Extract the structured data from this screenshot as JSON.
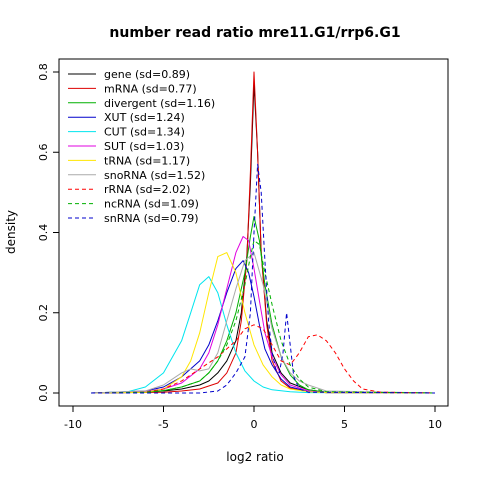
{
  "chart_data": {
    "type": "line",
    "title": "number read ratio mre11.G1/rrp6.G1",
    "xlabel": "log2 ratio",
    "ylabel": "density",
    "xlim": [
      -10,
      10
    ],
    "ylim": [
      0,
      0.82
    ],
    "x_ticks": [
      -10,
      -5,
      0,
      5,
      10
    ],
    "y_ticks": [
      0.0,
      0.2,
      0.4,
      0.6,
      0.8
    ],
    "x_tick_labels": [
      "-10",
      "-5",
      "0",
      "5",
      "10"
    ],
    "y_tick_labels": [
      "0.0",
      "0.2",
      "0.4",
      "0.6",
      "0.8"
    ],
    "grid": false,
    "legend_position": "top-left",
    "series": [
      {
        "name": "gene (sd=0.89)",
        "color": "#000000",
        "dash": "solid",
        "x": [
          -9,
          -6,
          -5,
          -4,
          -3,
          -2.5,
          -2,
          -1.5,
          -1,
          -0.7,
          -0.4,
          -0.2,
          0,
          0.2,
          0.4,
          0.7,
          1,
          1.5,
          2,
          3,
          4,
          10
        ],
        "y": [
          0,
          0.002,
          0.005,
          0.01,
          0.02,
          0.03,
          0.05,
          0.08,
          0.13,
          0.2,
          0.34,
          0.52,
          0.77,
          0.6,
          0.35,
          0.18,
          0.1,
          0.05,
          0.025,
          0.008,
          0.002,
          0
        ]
      },
      {
        "name": "mRNA (sd=0.77)",
        "color": "#dd0000",
        "dash": "solid",
        "x": [
          -9,
          -5,
          -4,
          -3,
          -2,
          -1.5,
          -1,
          -0.7,
          -0.4,
          -0.2,
          0,
          0.2,
          0.4,
          0.7,
          1,
          1.5,
          2,
          3,
          4,
          10
        ],
        "y": [
          0,
          0.002,
          0.005,
          0.01,
          0.025,
          0.05,
          0.1,
          0.18,
          0.33,
          0.55,
          0.8,
          0.6,
          0.35,
          0.17,
          0.08,
          0.03,
          0.012,
          0.004,
          0.001,
          0
        ]
      },
      {
        "name": "divergent (sd=1.16)",
        "color": "#00b000",
        "dash": "solid",
        "x": [
          -9,
          -6,
          -5,
          -4,
          -3,
          -2.5,
          -2,
          -1.5,
          -1,
          -0.5,
          -0.2,
          0,
          0.3,
          0.6,
          1,
          1.5,
          2,
          2.5,
          3,
          4,
          10
        ],
        "y": [
          0,
          0.002,
          0.006,
          0.015,
          0.03,
          0.05,
          0.08,
          0.13,
          0.2,
          0.3,
          0.39,
          0.44,
          0.38,
          0.27,
          0.17,
          0.09,
          0.045,
          0.02,
          0.008,
          0.002,
          0
        ]
      },
      {
        "name": "XUT (sd=1.24)",
        "color": "#0000cc",
        "dash": "solid",
        "x": [
          -9,
          -6,
          -5,
          -4,
          -3,
          -2.5,
          -2,
          -1.5,
          -1,
          -0.6,
          -0.3,
          0,
          0.3,
          0.6,
          1,
          1.5,
          2,
          3,
          4,
          10
        ],
        "y": [
          0,
          0.005,
          0.015,
          0.04,
          0.08,
          0.12,
          0.18,
          0.25,
          0.31,
          0.33,
          0.3,
          0.24,
          0.17,
          0.11,
          0.07,
          0.035,
          0.015,
          0.004,
          0.001,
          0
        ]
      },
      {
        "name": "CUT (sd=1.34)",
        "color": "#00e5ee",
        "dash": "solid",
        "x": [
          -9,
          -7,
          -6,
          -5,
          -4,
          -3.5,
          -3,
          -2.5,
          -2,
          -1.5,
          -1,
          -0.5,
          0,
          0.5,
          1,
          2,
          3,
          10
        ],
        "y": [
          0,
          0.003,
          0.015,
          0.05,
          0.13,
          0.2,
          0.27,
          0.29,
          0.25,
          0.17,
          0.1,
          0.055,
          0.03,
          0.015,
          0.008,
          0.003,
          0.001,
          0
        ]
      },
      {
        "name": "SUT (sd=1.03)",
        "color": "#e000e0",
        "dash": "solid",
        "x": [
          -9,
          -6,
          -5,
          -4,
          -3,
          -2.5,
          -2,
          -1.5,
          -1,
          -0.6,
          -0.3,
          0,
          0.3,
          0.6,
          1,
          1.5,
          2,
          3,
          4,
          10
        ],
        "y": [
          0,
          0.003,
          0.01,
          0.025,
          0.06,
          0.1,
          0.17,
          0.26,
          0.35,
          0.39,
          0.38,
          0.31,
          0.23,
          0.15,
          0.09,
          0.045,
          0.02,
          0.005,
          0.001,
          0
        ]
      },
      {
        "name": "tRNA (sd=1.17)",
        "color": "#ffe600",
        "dash": "solid",
        "x": [
          -9,
          -6,
          -5,
          -4,
          -3.5,
          -3,
          -2.5,
          -2,
          -1.5,
          -1,
          -0.5,
          0,
          0.5,
          1,
          1.5,
          2,
          3,
          4,
          10
        ],
        "y": [
          0,
          0.002,
          0.01,
          0.04,
          0.08,
          0.15,
          0.25,
          0.34,
          0.35,
          0.3,
          0.2,
          0.12,
          0.07,
          0.04,
          0.02,
          0.01,
          0.003,
          0.001,
          0
        ]
      },
      {
        "name": "snoRNA (sd=1.52)",
        "color": "#aaaaaa",
        "dash": "solid",
        "x": [
          -9,
          -6,
          -5,
          -4,
          -3.5,
          -3,
          -2.5,
          -2,
          -1.5,
          -1,
          -0.5,
          0,
          0.5,
          1,
          1.5,
          2,
          2.5,
          3,
          4,
          10
        ],
        "y": [
          0,
          0.005,
          0.02,
          0.05,
          0.06,
          0.055,
          0.06,
          0.1,
          0.18,
          0.26,
          0.33,
          0.35,
          0.27,
          0.16,
          0.09,
          0.05,
          0.03,
          0.02,
          0.005,
          0
        ]
      },
      {
        "name": "rRNA (sd=2.02)",
        "color": "#ff0000",
        "dash": "dashed",
        "x": [
          -9,
          -6,
          -5,
          -4,
          -3,
          -2,
          -1.5,
          -1,
          -0.5,
          0,
          0.5,
          1,
          1.5,
          2,
          2.5,
          3,
          3.5,
          4,
          4.5,
          5,
          5.5,
          6,
          7,
          10
        ],
        "y": [
          0,
          0.002,
          0.01,
          0.03,
          0.06,
          0.09,
          0.11,
          0.13,
          0.16,
          0.17,
          0.16,
          0.12,
          0.08,
          0.07,
          0.1,
          0.14,
          0.145,
          0.13,
          0.1,
          0.06,
          0.03,
          0.01,
          0.002,
          0
        ]
      },
      {
        "name": "ncRNA (sd=1.09)",
        "color": "#00b000",
        "dash": "dashed",
        "x": [
          -9,
          -6,
          -5,
          -4,
          -3,
          -2.5,
          -2,
          -1.5,
          -1,
          -0.5,
          -0.2,
          0,
          0.3,
          0.6,
          1,
          1.5,
          2,
          2.5,
          3,
          4,
          10
        ],
        "y": [
          0,
          0.002,
          0.006,
          0.015,
          0.03,
          0.05,
          0.08,
          0.12,
          0.18,
          0.27,
          0.34,
          0.38,
          0.37,
          0.3,
          0.22,
          0.13,
          0.07,
          0.035,
          0.015,
          0.003,
          0
        ]
      },
      {
        "name": "snRNA (sd=0.79)",
        "color": "#0000cc",
        "dash": "dashed",
        "x": [
          -9,
          -3,
          -2,
          -1.5,
          -1,
          -0.5,
          -0.2,
          0,
          0.2,
          0.4,
          0.6,
          0.8,
          1,
          1.2,
          1.4,
          1.6,
          1.8,
          2,
          2.2,
          2.5,
          3,
          10
        ],
        "y": [
          0,
          0,
          0.005,
          0.02,
          0.05,
          0.09,
          0.2,
          0.4,
          0.57,
          0.5,
          0.33,
          0.18,
          0.1,
          0.06,
          0.05,
          0.1,
          0.2,
          0.12,
          0.04,
          0.01,
          0.002,
          0
        ]
      }
    ]
  }
}
